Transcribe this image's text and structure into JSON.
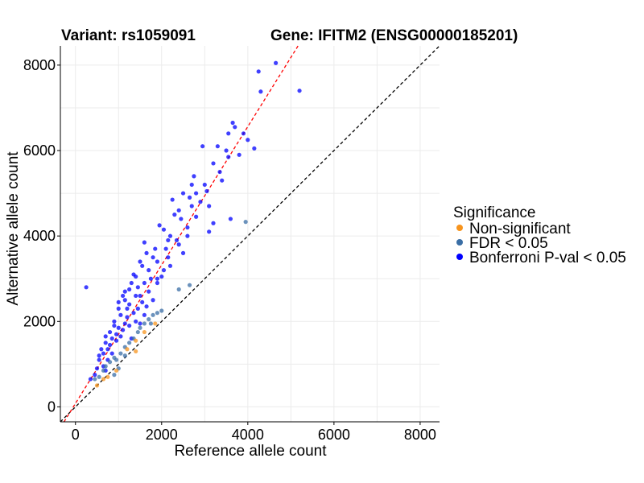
{
  "chart_data": {
    "type": "scatter",
    "title_left": "Variant: rs1059091",
    "title_right": "Gene: IFITM2 (ENSG00000185201)",
    "xlabel": "Reference allele count",
    "ylabel": "Alternative allele count",
    "xlim": [
      -350,
      8450
    ],
    "ylim": [
      -350,
      8450
    ],
    "x_ticks": [
      0,
      2000,
      4000,
      6000,
      8000
    ],
    "y_ticks": [
      0,
      2000,
      4000,
      6000,
      8000
    ],
    "grid": true,
    "legend": {
      "title": "Significance",
      "position": "right",
      "entries": [
        {
          "label": "Non-significant",
          "color": "#f7941d"
        },
        {
          "label": "FDR < 0.05",
          "color": "#3a6ea5"
        },
        {
          "label": "Bonferroni P-val < 0.05",
          "color": "#0000ff"
        }
      ]
    },
    "reference_lines": [
      {
        "style": "dashed",
        "color": "#000000",
        "slope": 1,
        "intercept": 0
      },
      {
        "style": "dashed",
        "color": "#ff0000",
        "slope": 1.62,
        "intercept": 80
      }
    ],
    "series": [
      {
        "name": "Bonferroni P-val < 0.05",
        "color": "#0000ff",
        "points": [
          [
            250,
            2800
          ],
          [
            4650,
            8050
          ],
          [
            4250,
            7850
          ],
          [
            5200,
            7400
          ],
          [
            4300,
            7380
          ],
          [
            3650,
            6650
          ],
          [
            3700,
            6550
          ],
          [
            3550,
            6400
          ],
          [
            3900,
            6400
          ],
          [
            3300,
            6100
          ],
          [
            2950,
            6100
          ],
          [
            3550,
            5850
          ],
          [
            4000,
            6250
          ],
          [
            4150,
            6050
          ],
          [
            3800,
            5900
          ],
          [
            3350,
            5500
          ],
          [
            2750,
            5400
          ],
          [
            3050,
            5050
          ],
          [
            2500,
            5000
          ],
          [
            2650,
            4900
          ],
          [
            2900,
            4800
          ],
          [
            2400,
            4600
          ],
          [
            2800,
            4450
          ],
          [
            3200,
            4300
          ],
          [
            3600,
            4400
          ],
          [
            3100,
            4100
          ],
          [
            2250,
            4850
          ],
          [
            2050,
            4150
          ],
          [
            2150,
            3900
          ],
          [
            1850,
            3700
          ],
          [
            2500,
            3600
          ],
          [
            1600,
            3850
          ],
          [
            1900,
            3400
          ],
          [
            1550,
            3300
          ],
          [
            2000,
            3050
          ],
          [
            1750,
            3000
          ],
          [
            1400,
            3050
          ],
          [
            1250,
            2750
          ],
          [
            1500,
            2600
          ],
          [
            1150,
            2500
          ],
          [
            1800,
            2500
          ],
          [
            1650,
            2350
          ],
          [
            1000,
            2300
          ],
          [
            1200,
            2100
          ],
          [
            1400,
            2000
          ],
          [
            900,
            2000
          ],
          [
            1100,
            1800
          ],
          [
            800,
            1750
          ],
          [
            950,
            1550
          ],
          [
            700,
            1500
          ],
          [
            1300,
            1600
          ],
          [
            600,
            1350
          ],
          [
            850,
            1250
          ],
          [
            750,
            1100
          ],
          [
            550,
            1100
          ],
          [
            650,
            950
          ],
          [
            500,
            900
          ],
          [
            700,
            850
          ],
          [
            450,
            750
          ],
          [
            350,
            650
          ],
          [
            1500,
            1950
          ],
          [
            1600,
            2150
          ],
          [
            1100,
            2600
          ],
          [
            1300,
            2900
          ],
          [
            1700,
            3200
          ],
          [
            2200,
            3300
          ],
          [
            2100,
            3700
          ],
          [
            2350,
            3900
          ],
          [
            2600,
            4200
          ],
          [
            1950,
            4250
          ],
          [
            2700,
            4700
          ],
          [
            3000,
            5200
          ],
          [
            3200,
            5700
          ],
          [
            3400,
            5300
          ],
          [
            2300,
            4500
          ],
          [
            2450,
            4400
          ],
          [
            2600,
            4000
          ],
          [
            1800,
            3500
          ],
          [
            1450,
            2800
          ],
          [
            1250,
            2400
          ],
          [
            1050,
            2150
          ],
          [
            900,
            1900
          ],
          [
            1350,
            2200
          ],
          [
            1550,
            2450
          ],
          [
            1700,
            2700
          ],
          [
            1900,
            2900
          ],
          [
            2050,
            3200
          ],
          [
            1150,
            1950
          ],
          [
            950,
            1700
          ],
          [
            800,
            1450
          ],
          [
            1200,
            2300
          ],
          [
            1000,
            1850
          ],
          [
            850,
            1600
          ],
          [
            1400,
            2600
          ],
          [
            1600,
            2900
          ],
          [
            650,
            1250
          ],
          [
            750,
            1350
          ],
          [
            1050,
            1650
          ],
          [
            1250,
            1900
          ],
          [
            1450,
            2300
          ],
          [
            2150,
            3500
          ],
          [
            2400,
            3800
          ],
          [
            1350,
            3100
          ],
          [
            1650,
            3600
          ],
          [
            2800,
            5000
          ],
          [
            3100,
            4700
          ],
          [
            2200,
            4000
          ],
          [
            1900,
            3000
          ],
          [
            1150,
            2700
          ],
          [
            1000,
            2450
          ],
          [
            700,
            1650
          ],
          [
            550,
            1200
          ],
          [
            1500,
            3400
          ],
          [
            2700,
            5200
          ],
          [
            3500,
            6000
          ]
        ]
      },
      {
        "name": "FDR < 0.05",
        "color": "#3a6ea5",
        "points": [
          [
            3950,
            4330
          ],
          [
            2650,
            2850
          ],
          [
            2400,
            2750
          ],
          [
            1900,
            2200
          ],
          [
            1800,
            2150
          ],
          [
            1700,
            2050
          ],
          [
            1600,
            1950
          ],
          [
            1500,
            1850
          ],
          [
            1350,
            1600
          ],
          [
            1250,
            1500
          ],
          [
            1150,
            1400
          ],
          [
            1050,
            1250
          ],
          [
            900,
            1150
          ],
          [
            800,
            1050
          ],
          [
            700,
            950
          ],
          [
            650,
            850
          ],
          [
            450,
            650
          ],
          [
            550,
            700
          ],
          [
            950,
            1100
          ],
          [
            1450,
            1750
          ],
          [
            1000,
            900
          ],
          [
            900,
            750
          ],
          [
            1150,
            1200
          ],
          [
            2000,
            2250
          ],
          [
            1750,
            1950
          ]
        ]
      },
      {
        "name": "Non-significant",
        "color": "#f7941d",
        "points": [
          [
            1850,
            1950
          ],
          [
            1600,
            1750
          ],
          [
            1400,
            1550
          ],
          [
            1400,
            1300
          ],
          [
            1200,
            1350
          ],
          [
            750,
            700
          ],
          [
            650,
            650
          ],
          [
            950,
            850
          ],
          [
            500,
            500
          ]
        ]
      }
    ]
  }
}
